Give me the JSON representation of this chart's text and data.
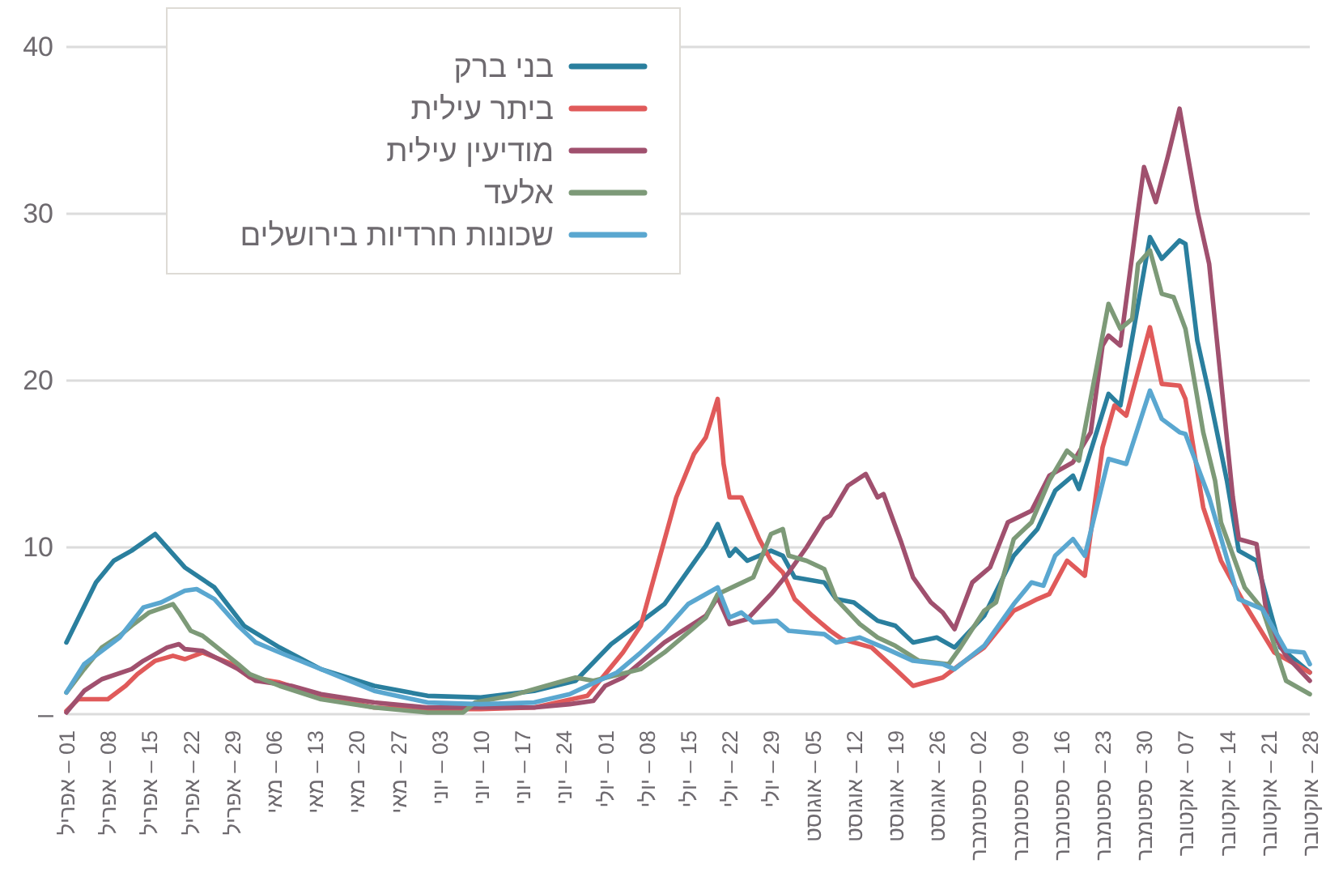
{
  "chart_data": {
    "type": "line",
    "xlim": [
      "--04-01",
      "--10-28"
    ],
    "xticks": [
      {
        "value": "--04-01",
        "label": "01 – אפריל"
      },
      {
        "value": "--04-08",
        "label": "08 – אפריל"
      },
      {
        "value": "--04-15",
        "label": "15 – אפריל"
      },
      {
        "value": "--04-22",
        "label": "22 – אפריל"
      },
      {
        "value": "--04-29",
        "label": "29 – אפריל"
      },
      {
        "value": "--05-06",
        "label": "06 – מאי"
      },
      {
        "value": "--05-13",
        "label": "13 – מאי"
      },
      {
        "value": "--05-20",
        "label": "20 – מאי"
      },
      {
        "value": "--05-27",
        "label": "27 – מאי"
      },
      {
        "value": "--06-03",
        "label": "03 – יוני"
      },
      {
        "value": "--06-10",
        "label": "10 – יוני"
      },
      {
        "value": "--06-17",
        "label": "17 – יוני"
      },
      {
        "value": "--06-24",
        "label": "24 – יוני"
      },
      {
        "value": "--07-01",
        "label": "01 – יולי"
      },
      {
        "value": "--07-08",
        "label": "08 – יולי"
      },
      {
        "value": "--07-15",
        "label": "15 – יולי"
      },
      {
        "value": "--07-22",
        "label": "22 – יולי"
      },
      {
        "value": "--07-29",
        "label": "29 – יולי"
      },
      {
        "value": "--08-05",
        "label": "05 – אוגוסט"
      },
      {
        "value": "--08-12",
        "label": "12 – אוגוסט"
      },
      {
        "value": "--08-19",
        "label": "19 – אוגוסט"
      },
      {
        "value": "--08-26",
        "label": "26 – אוגוסט"
      },
      {
        "value": "--09-02",
        "label": "02 – ספטמבר"
      },
      {
        "value": "--09-09",
        "label": "09 – ספטמבר"
      },
      {
        "value": "--09-16",
        "label": "16 – ספטמבר"
      },
      {
        "value": "--09-23",
        "label": "23 – ספטמבר"
      },
      {
        "value": "--09-30",
        "label": "30 – ספטמבר"
      },
      {
        "value": "--10-07",
        "label": "07 – אוקטובר"
      },
      {
        "value": "--10-14",
        "label": "14 – אוקטובר"
      },
      {
        "value": "--10-21",
        "label": "21 – אוקטובר"
      },
      {
        "value": "--10-28",
        "label": "28 – אוקטובר"
      }
    ],
    "ylim": [
      0,
      40
    ],
    "yticks": [
      {
        "value": 0,
        "label": "–"
      },
      10,
      20,
      30,
      40
    ],
    "grid": "y",
    "legend": "top left",
    "series": [
      {
        "name": "בני ברק",
        "color": "#2a7f9e",
        "x": [
          "--04-01",
          "--04-06",
          "--04-09",
          "--04-12",
          "--04-16",
          "--04-21",
          "--04-26",
          "--05-01",
          "--05-07",
          "--05-14",
          "--05-23",
          "--06-01",
          "--06-10",
          "--06-19",
          "--06-26",
          "--07-02",
          "--07-11",
          "--07-18",
          "--07-20",
          "--07-22",
          "--07-23",
          "--07-25",
          "--07-29",
          "--07-31",
          "--08-02",
          "--08-07",
          "--08-09",
          "--08-12",
          "--08-16",
          "--08-19",
          "--08-22",
          "--08-26",
          "--08-29",
          "--09-03",
          "--09-08",
          "--09-12",
          "--09-15",
          "--09-18",
          "--09-19",
          "--09-24",
          "--09-26",
          "--10-01",
          "--10-03",
          "--10-06",
          "--10-07",
          "--10-09",
          "--10-11",
          "--10-14",
          "--10-16",
          "--10-19",
          "--10-23",
          "--10-28"
        ],
        "values": [
          4.3,
          7.9,
          9.2,
          9.8,
          10.8,
          8.8,
          7.6,
          5.3,
          4.0,
          2.7,
          1.7,
          1.1,
          1.0,
          1.4,
          2.0,
          4.2,
          6.6,
          10.1,
          11.4,
          9.5,
          9.9,
          9.2,
          9.8,
          9.5,
          8.2,
          7.9,
          6.9,
          6.7,
          5.6,
          5.3,
          4.3,
          4.6,
          4.0,
          5.9,
          9.5,
          11.1,
          13.4,
          14.3,
          13.5,
          19.2,
          18.5,
          28.6,
          27.3,
          28.4,
          28.2,
          22.4,
          19.2,
          14.0,
          9.8,
          9.2,
          4.0,
          2.5
        ]
      },
      {
        "name": "ביתר עילית",
        "color": "#e05a5a",
        "x": [
          "--04-01",
          "--04-03",
          "--04-08",
          "--04-11",
          "--04-13",
          "--04-16",
          "--04-19",
          "--04-21",
          "--04-24",
          "--04-29",
          "--05-02",
          "--05-07",
          "--05-14",
          "--05-23",
          "--06-01",
          "--06-10",
          "--06-19",
          "--06-28",
          "--07-04",
          "--07-07",
          "--07-13",
          "--07-16",
          "--07-18",
          "--07-20",
          "--07-21",
          "--07-22",
          "--07-24",
          "--07-27",
          "--07-29",
          "--07-31",
          "--08-02",
          "--08-05",
          "--08-08",
          "--08-10",
          "--08-15",
          "--08-19",
          "--08-22",
          "--08-27",
          "--08-30",
          "--09-03",
          "--09-08",
          "--09-12",
          "--09-14",
          "--09-17",
          "--09-20",
          "--09-23",
          "--09-25",
          "--09-27",
          "--10-01",
          "--10-03",
          "--10-06",
          "--10-07",
          "--10-10",
          "--10-13",
          "--10-17",
          "--10-22",
          "--10-27",
          "--10-28"
        ],
        "values": [
          0.2,
          0.9,
          0.9,
          1.7,
          2.4,
          3.2,
          3.5,
          3.3,
          3.7,
          3.0,
          2.2,
          1.9,
          1.1,
          0.4,
          0.3,
          0.3,
          0.4,
          1.1,
          3.7,
          5.3,
          13.0,
          15.6,
          16.6,
          18.9,
          15.0,
          13.0,
          13.0,
          10.5,
          9.2,
          8.5,
          6.9,
          5.9,
          5.0,
          4.5,
          4.0,
          2.7,
          1.7,
          2.2,
          3.0,
          4.0,
          6.2,
          6.9,
          7.2,
          9.2,
          8.3,
          16.0,
          18.5,
          17.9,
          23.2,
          19.8,
          19.7,
          18.9,
          12.4,
          9.2,
          6.6,
          3.7,
          2.7,
          2.5
        ]
      },
      {
        "name": "מודיעין עילית",
        "color": "#a0506e",
        "x": [
          "--04-01",
          "--04-04",
          "--04-07",
          "--04-12",
          "--04-14",
          "--04-18",
          "--04-20",
          "--04-21",
          "--04-24",
          "--04-30",
          "--05-03",
          "--05-09",
          "--05-14",
          "--05-23",
          "--06-01",
          "--06-10",
          "--06-19",
          "--06-25",
          "--06-29",
          "--07-01",
          "--07-04",
          "--07-11",
          "--07-18",
          "--07-20",
          "--07-22",
          "--07-25",
          "--07-29",
          "--08-01",
          "--08-04",
          "--08-07",
          "--08-08",
          "--08-11",
          "--08-14",
          "--08-16",
          "--08-17",
          "--08-20",
          "--08-22",
          "--08-25",
          "--08-27",
          "--08-29",
          "--09-01",
          "--09-04",
          "--09-07",
          "--09-11",
          "--09-14",
          "--09-18",
          "--09-21",
          "--09-23",
          "--09-24",
          "--09-26",
          "--09-29",
          "--09-30",
          "--10-02",
          "--10-04",
          "--10-06",
          "--10-09",
          "--10-11",
          "--10-13",
          "--10-15",
          "--10-16",
          "--10-19",
          "--10-21",
          "--10-24",
          "--10-28"
        ],
        "values": [
          0.1,
          1.4,
          2.1,
          2.7,
          3.2,
          4.0,
          4.2,
          3.9,
          3.8,
          2.7,
          2.0,
          1.7,
          1.2,
          0.7,
          0.4,
          0.4,
          0.4,
          0.6,
          0.8,
          1.7,
          2.2,
          4.3,
          5.9,
          7.0,
          5.4,
          5.7,
          7.2,
          8.5,
          10.0,
          11.7,
          11.9,
          13.7,
          14.4,
          13.0,
          13.2,
          10.3,
          8.2,
          6.7,
          6.1,
          5.1,
          7.9,
          8.8,
          11.5,
          12.2,
          14.3,
          15.1,
          16.9,
          22.1,
          22.7,
          22.1,
          30.2,
          32.8,
          30.7,
          33.4,
          36.3,
          30.2,
          27.0,
          20.0,
          13.0,
          10.5,
          10.2,
          5.3,
          3.5,
          2.0
        ]
      },
      {
        "name": "אלעד",
        "color": "#7d9a78",
        "x": [
          "--04-01",
          "--04-04",
          "--04-07",
          "--04-10",
          "--04-12",
          "--04-15",
          "--04-19",
          "--04-20",
          "--04-22",
          "--04-24",
          "--04-30",
          "--05-02",
          "--05-07",
          "--05-14",
          "--05-23",
          "--06-01",
          "--06-07",
          "--06-09",
          "--06-15",
          "--06-21",
          "--06-26",
          "--06-29",
          "--07-07",
          "--07-11",
          "--07-18",
          "--07-20",
          "--07-23",
          "--07-26",
          "--07-29",
          "--07-31",
          "--08-01",
          "--08-04",
          "--08-07",
          "--08-09",
          "--08-13",
          "--08-16",
          "--08-19",
          "--08-23",
          "--08-28",
          "--08-30",
          "--09-03",
          "--09-05",
          "--09-08",
          "--09-11",
          "--09-14",
          "--09-17",
          "--09-19",
          "--09-22",
          "--09-24",
          "--09-26",
          "--09-28",
          "--09-29",
          "--10-01",
          "--10-03",
          "--10-05",
          "--10-07",
          "--10-10",
          "--10-12",
          "--10-13",
          "--10-17",
          "--10-20",
          "--10-24",
          "--10-28"
        ],
        "values": [
          1.3,
          2.7,
          4.0,
          4.7,
          5.3,
          6.1,
          6.6,
          6.1,
          5.0,
          4.7,
          3.0,
          2.4,
          1.7,
          0.9,
          0.4,
          0.1,
          0.1,
          0.7,
          1.1,
          1.7,
          2.2,
          2.0,
          2.7,
          3.7,
          5.8,
          7.2,
          7.7,
          8.2,
          10.8,
          11.1,
          9.5,
          9.2,
          8.7,
          6.9,
          5.4,
          4.6,
          4.1,
          3.2,
          3.0,
          4.0,
          6.2,
          6.7,
          10.5,
          11.5,
          14.0,
          15.8,
          15.2,
          20.8,
          24.6,
          23.1,
          23.7,
          27.0,
          27.8,
          25.2,
          25.0,
          23.1,
          16.9,
          14.0,
          11.5,
          7.6,
          6.3,
          2.0,
          1.2
        ]
      },
      {
        "name": "שכונות חרדיות בירושלים",
        "color": "#5aa7d0",
        "x": [
          "--04-01",
          "--04-04",
          "--04-10",
          "--04-14",
          "--04-17",
          "--04-21",
          "--04-23",
          "--04-26",
          "--04-30",
          "--05-03",
          "--05-07",
          "--05-14",
          "--05-23",
          "--06-01",
          "--06-10",
          "--06-19",
          "--06-25",
          "--06-28",
          "--07-03",
          "--07-07",
          "--07-11",
          "--07-15",
          "--07-20",
          "--07-22",
          "--07-24",
          "--07-26",
          "--07-30",
          "--08-01",
          "--08-07",
          "--08-09",
          "--08-13",
          "--08-17",
          "--08-22",
          "--08-27",
          "--08-29",
          "--09-03",
          "--09-08",
          "--09-11",
          "--09-13",
          "--09-15",
          "--09-18",
          "--09-20",
          "--09-24",
          "--09-27",
          "--10-01",
          "--10-03",
          "--10-06",
          "--10-07",
          "--10-11",
          "--10-16",
          "--10-20",
          "--10-24",
          "--10-27",
          "--10-28"
        ],
        "values": [
          1.3,
          3.0,
          4.6,
          6.4,
          6.7,
          7.4,
          7.5,
          6.9,
          5.3,
          4.3,
          3.7,
          2.7,
          1.4,
          0.7,
          0.6,
          0.7,
          1.2,
          1.7,
          2.5,
          3.7,
          5.0,
          6.6,
          7.6,
          5.8,
          6.1,
          5.5,
          5.6,
          5.0,
          4.8,
          4.3,
          4.6,
          4.0,
          3.2,
          3.0,
          2.7,
          4.1,
          6.6,
          7.9,
          7.7,
          9.5,
          10.5,
          9.5,
          15.3,
          15.0,
          19.4,
          17.7,
          16.9,
          16.8,
          13.0,
          6.9,
          6.3,
          3.8,
          3.7,
          3.0
        ]
      }
    ]
  }
}
